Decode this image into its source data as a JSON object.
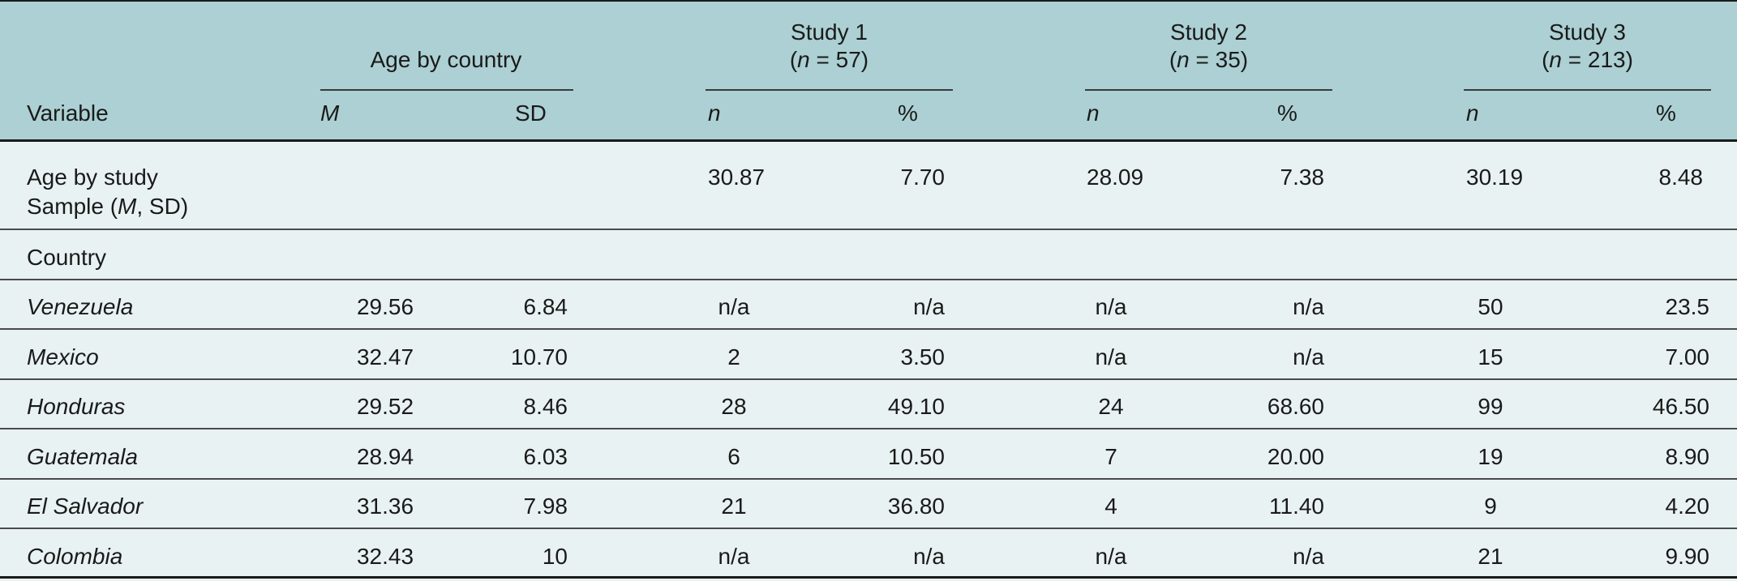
{
  "header": {
    "variable": "Variable",
    "groups": [
      {
        "title": "Age by country",
        "n_label": ""
      },
      {
        "title": "Study 1",
        "n_label": "(n = 57)"
      },
      {
        "title": "Study 2",
        "n_label": "(n = 35)"
      },
      {
        "title": "Study 3",
        "n_label": "(n = 213)"
      }
    ],
    "sub": {
      "age_m": "M",
      "age_sd": "SD",
      "s1_n": "n",
      "s1_pct": "%",
      "s2_n": "n",
      "s2_pct": "%",
      "s3_n": "n",
      "s3_pct": "%"
    }
  },
  "age_row": {
    "label_line1": "Age by study",
    "label_line2_pre": "Sample (",
    "label_line2_m": "M",
    "label_line2_post": ", SD)",
    "values": [
      "30.87",
      "7.70",
      "28.09",
      "7.38",
      "30.19",
      "8.48"
    ]
  },
  "country_label": "Country",
  "rows": [
    {
      "label": "Venezuela",
      "values": [
        "29.56",
        "6.84",
        "n/a",
        "n/a",
        "n/a",
        "n/a",
        "50",
        "23.5"
      ]
    },
    {
      "label": "Mexico",
      "values": [
        "32.47",
        "10.70",
        "2",
        "3.50",
        "n/a",
        "n/a",
        "15",
        "7.00"
      ]
    },
    {
      "label": "Honduras",
      "values": [
        "29.52",
        "8.46",
        "28",
        "49.10",
        "24",
        "68.60",
        "99",
        "46.50"
      ]
    },
    {
      "label": "Guatemala",
      "values": [
        "28.94",
        "6.03",
        "6",
        "10.50",
        "7",
        "20.00",
        "19",
        "8.90"
      ]
    },
    {
      "label": "El Salvador",
      "values": [
        "31.36",
        "7.98",
        "21",
        "36.80",
        "4",
        "11.40",
        "9",
        "4.20"
      ]
    },
    {
      "label": "Colombia",
      "values": [
        "32.43",
        "10",
        "n/a",
        "n/a",
        "n/a",
        "n/a",
        "21",
        "9.90"
      ]
    }
  ]
}
